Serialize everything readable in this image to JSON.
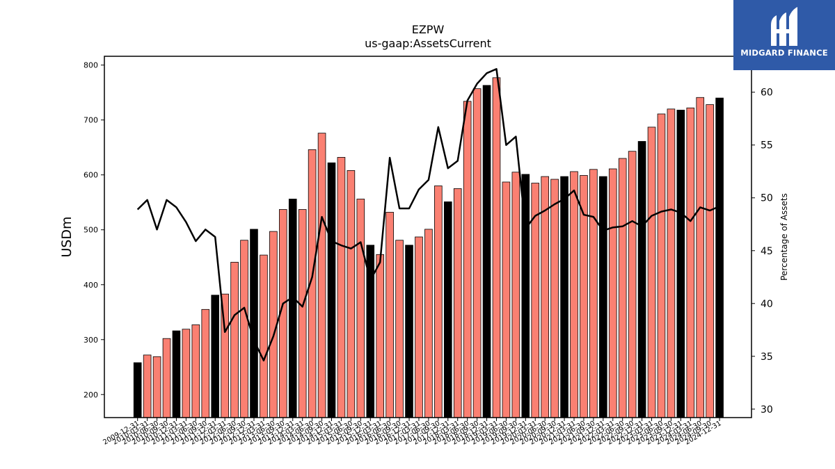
{
  "logo": {
    "text": "MIDGARD FINANCE",
    "icon": "midgard-m-icon",
    "bg_color": "#2f5aa8"
  },
  "chart_data": {
    "type": "bar",
    "title": "EZPW",
    "subtitle": "us-gaap:AssetsCurrent",
    "ylabel": "USDm",
    "y2label": "Percentage of Assets",
    "ylim": [
      158,
      816
    ],
    "y2lim": [
      29.2,
      63.4
    ],
    "yticks": [
      200,
      300,
      400,
      500,
      600,
      700,
      800
    ],
    "y2ticks": [
      30,
      35,
      40,
      45,
      50,
      55,
      60
    ],
    "bar_color": "#fa8072",
    "highlight_color": "#000000",
    "line_color": "#000000",
    "categories": [
      "2009-12-31",
      "2010-03-31",
      "2010-06-30",
      "2010-09-30",
      "2010-12-31",
      "2011-03-31",
      "2011-06-30",
      "2011-09-30",
      "2011-12-31",
      "2012-03-31",
      "2012-06-30",
      "2012-09-30",
      "2012-12-31",
      "2013-03-31",
      "2013-06-30",
      "2013-09-30",
      "2013-12-31",
      "2014-03-31",
      "2014-06-30",
      "2014-09-30",
      "2014-12-31",
      "2015-03-31",
      "2015-06-30",
      "2015-09-30",
      "2015-12-31",
      "2016-03-31",
      "2016-06-30",
      "2016-09-30",
      "2016-12-31",
      "2017-03-31",
      "2017-06-30",
      "2017-09-30",
      "2017-12-31",
      "2018-03-31",
      "2018-06-30",
      "2018-09-30",
      "2018-12-31",
      "2019-03-31",
      "2019-06-30",
      "2019-09-30",
      "2019-12-31",
      "2020-03-31",
      "2020-06-30",
      "2020-09-30",
      "2020-12-31",
      "2021-03-31",
      "2021-06-30",
      "2021-09-30",
      "2021-12-31",
      "2022-03-31",
      "2022-06-30",
      "2022-09-30",
      "2022-12-31",
      "2023-03-31",
      "2023-06-30",
      "2023-09-30",
      "2023-12-31",
      "2024-03-31",
      "2024-06-30",
      "2024-09-30",
      "2024-12-31"
    ],
    "tick_labels": [
      "2009-12-31",
      "2010-03-31",
      "2010-06-30",
      "2010-09-30",
      "2010-12-31",
      "2011-03-31",
      "2011-06-30",
      "2011-09-30",
      "2011-12-31",
      "2012-03-31",
      "2012-06-30",
      "2012-09-30",
      "2012-12-31",
      "2013-03-31",
      "2013-06-30",
      "2013-09-30",
      "2013-12-31",
      "2014-03-31",
      "2014-06-30",
      "2014-09-30",
      "2014-12-31",
      "2015-03-31",
      "2015-06-30",
      "2015-09-30",
      "2015-12-31",
      "2016-03-31",
      "2016-06-30",
      "2016-09-30",
      "2016-12-31",
      "2017-03-31",
      "2017-06-30",
      "2017-09-30",
      "2017-12-31",
      "2018-03-31",
      "2018-06-30",
      "2018-09-30",
      "2018-12-31",
      "2019-03-31",
      "2019-06-30",
      "2019-09-30",
      "2019-12-31",
      "2020-03-31",
      "2020-06-30",
      "2020-09-30",
      "2020-12-31",
      "2021-03-31",
      "2021-06-30",
      "2021-09-30",
      "2021-12-31",
      "2022-03-31",
      "2022-06-30",
      "2022-09-30",
      "2022-12-31",
      "2023-03-31",
      "2023-06-30",
      "2023-09-30",
      "2023-12-31",
      "2024-03-31",
      "2024-06-30",
      "2024-09-30",
      "2024-12-31"
    ],
    "highlight": [
      true,
      false,
      false,
      false,
      true,
      false,
      false,
      false,
      true,
      false,
      false,
      false,
      true,
      false,
      false,
      false,
      true,
      false,
      false,
      false,
      true,
      false,
      false,
      false,
      true,
      false,
      false,
      false,
      true,
      false,
      false,
      false,
      true,
      false,
      false,
      false,
      true,
      false,
      false,
      false,
      true,
      false,
      false,
      false,
      true,
      false,
      false,
      false,
      true,
      false,
      false,
      false,
      true,
      false,
      false,
      false,
      true,
      false,
      false,
      false,
      true
    ],
    "values": [
      258,
      272,
      269,
      302,
      316,
      319,
      327,
      355,
      381,
      383,
      441,
      481,
      501,
      454,
      497,
      537,
      556,
      537,
      646,
      676,
      622,
      632,
      608,
      556,
      472,
      455,
      532,
      481,
      472,
      487,
      501,
      580,
      551,
      575,
      734,
      757,
      763,
      777,
      587,
      605,
      601,
      585,
      597,
      592,
      597,
      606,
      599,
      610,
      597,
      611,
      630,
      643,
      661,
      687,
      711,
      720,
      718,
      722,
      741,
      728,
      740
    ],
    "pct_values": [
      48.9,
      49.8,
      47.0,
      49.8,
      49.1,
      47.7,
      45.9,
      47.0,
      46.3,
      37.3,
      38.9,
      39.6,
      36.5,
      34.6,
      36.9,
      40.0,
      40.6,
      39.7,
      42.5,
      48.2,
      45.9,
      45.5,
      45.2,
      45.8,
      42.2,
      43.9,
      53.8,
      49.0,
      49.0,
      50.8,
      51.7,
      56.7,
      52.8,
      53.5,
      59.2,
      60.8,
      61.8,
      62.2,
      55.0,
      55.8,
      47.1,
      48.3,
      48.8,
      49.4,
      49.9,
      50.7,
      48.4,
      48.2,
      46.9,
      47.2,
      47.3,
      47.8,
      47.3,
      48.3,
      48.7,
      48.9,
      48.6,
      47.8,
      49.1,
      48.8,
      49.2
    ]
  }
}
